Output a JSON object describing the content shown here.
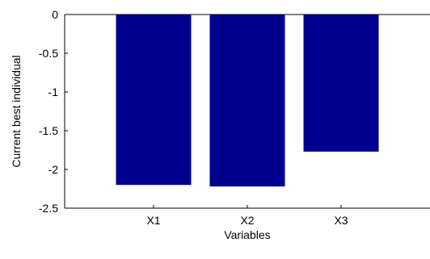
{
  "chart_data": {
    "type": "bar",
    "categories": [
      "X1",
      "X2",
      "X3"
    ],
    "values": [
      -2.2,
      -2.22,
      -1.77
    ],
    "title": "",
    "xlabel": "Variables",
    "ylabel": "Current best individual",
    "ylim": [
      -2.5,
      0
    ],
    "yticks": [
      "0",
      "-0.5",
      "-1",
      "-1.5",
      "-2",
      "-2.5"
    ],
    "yticks_values": [
      0,
      -0.5,
      -1,
      -1.5,
      -2,
      -2.5
    ],
    "grid": false,
    "legend": "none",
    "bar_color": "#00008f",
    "axis_color": "#000000",
    "background": "#ffffff"
  }
}
